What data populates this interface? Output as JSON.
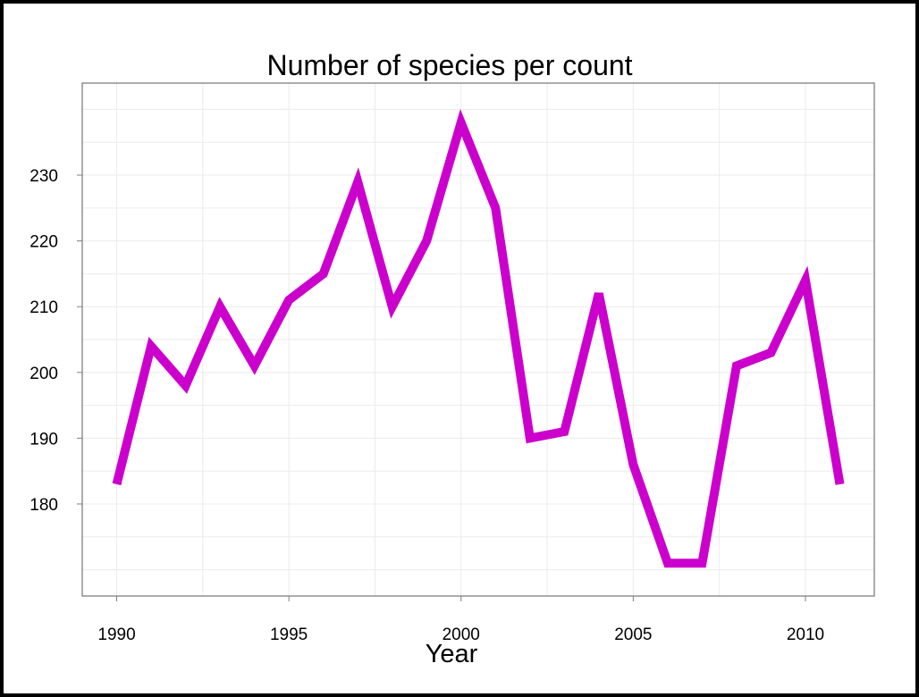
{
  "chart_data": {
    "type": "line",
    "title": "Number of species per count",
    "xlabel": "Year",
    "ylabel": "",
    "x": [
      1990,
      1991,
      1992,
      1993,
      1994,
      1995,
      1996,
      1997,
      1998,
      1999,
      2000,
      2001,
      2002,
      2003,
      2004,
      2005,
      2006,
      2007,
      2008,
      2009,
      2010,
      2011
    ],
    "series": [
      {
        "name": "",
        "values": [
          183,
          204,
          198,
          210,
          201,
          211,
          215,
          229,
          210,
          220,
          238,
          225,
          190,
          191,
          212,
          186,
          171,
          171,
          201,
          203,
          214,
          183
        ]
      }
    ],
    "xticks": [
      "1990",
      "1995",
      "2000",
      "2005",
      "2010"
    ],
    "yticks": [
      "180",
      "190",
      "200",
      "210",
      "220",
      "230"
    ],
    "xlim": [
      1989,
      2012
    ],
    "ylim": [
      166,
      244
    ],
    "grid": true,
    "line_color": "#cc00cc",
    "grid_color": "#ebebeb",
    "frame_color": "#7f7f7f"
  }
}
